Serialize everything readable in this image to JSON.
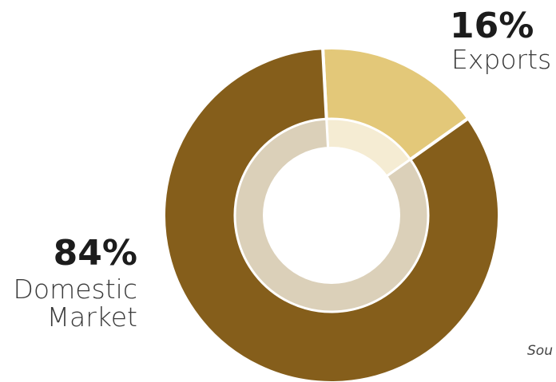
{
  "chart_data": {
    "type": "pie",
    "donut": true,
    "categories": [
      "Exports",
      "Domestic Market"
    ],
    "values": [
      16,
      84
    ],
    "labels": [
      {
        "percent": "16%",
        "name": "Exports"
      },
      {
        "percent": "84%",
        "name_lines": [
          "Domestic",
          "Market"
        ]
      }
    ],
    "colors": {
      "outer": [
        "#e3c879",
        "#855e1b"
      ],
      "inner": [
        "#f5ecd3",
        "#dbd0b9"
      ]
    },
    "legend": "none"
  },
  "footer": {
    "source_text": "Sou"
  }
}
